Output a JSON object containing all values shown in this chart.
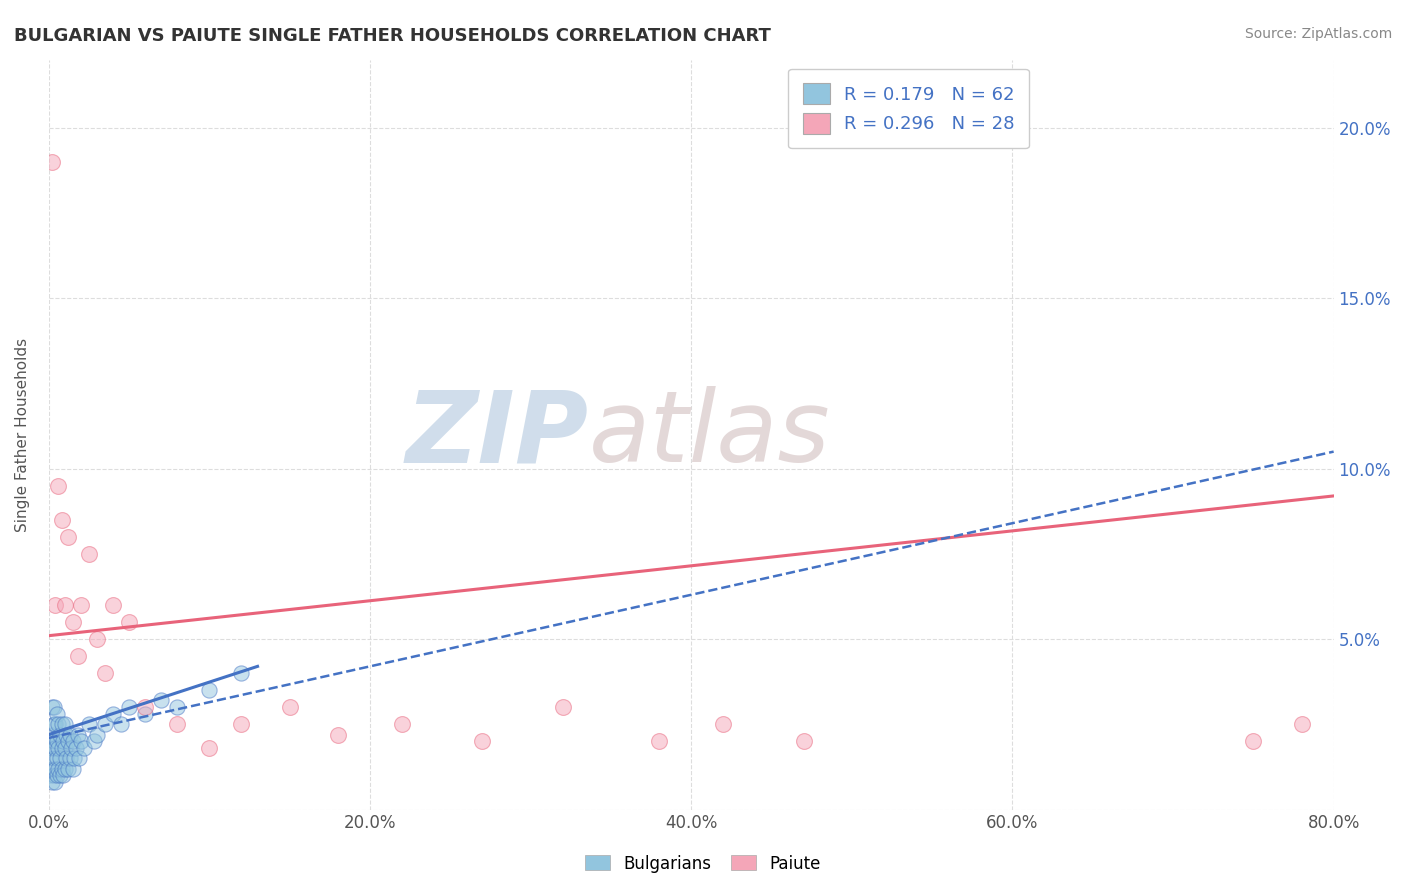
{
  "title": "BULGARIAN VS PAIUTE SINGLE FATHER HOUSEHOLDS CORRELATION CHART",
  "source": "Source: ZipAtlas.com",
  "ylabel": "Single Father Households",
  "xlim": [
    0.0,
    0.8
  ],
  "ylim": [
    0.0,
    0.22
  ],
  "xticks": [
    0.0,
    0.2,
    0.4,
    0.6,
    0.8
  ],
  "xticklabels": [
    "0.0%",
    "20.0%",
    "40.0%",
    "60.0%",
    "80.0%"
  ],
  "yticks": [
    0.0,
    0.05,
    0.1,
    0.15,
    0.2
  ],
  "yticklabels": [
    "",
    "5.0%",
    "10.0%",
    "15.0%",
    "20.0%"
  ],
  "bulgarian_color": "#92C5DE",
  "paiute_color": "#F4A6B8",
  "bulgarian_line_color": "#4472C4",
  "paiute_line_color": "#E8637A",
  "bulgarian_line_dashed": true,
  "r_bulgarian": 0.179,
  "n_bulgarian": 62,
  "r_paiute": 0.296,
  "n_paiute": 28,
  "watermark_zip": "ZIP",
  "watermark_atlas": "atlas",
  "background_color": "#FFFFFF",
  "grid_color": "#DDDDDD",
  "bulgarian_x": [
    0.001,
    0.001,
    0.001,
    0.002,
    0.002,
    0.002,
    0.002,
    0.002,
    0.003,
    0.003,
    0.003,
    0.003,
    0.003,
    0.004,
    0.004,
    0.004,
    0.004,
    0.005,
    0.005,
    0.005,
    0.005,
    0.006,
    0.006,
    0.006,
    0.007,
    0.007,
    0.007,
    0.008,
    0.008,
    0.008,
    0.009,
    0.009,
    0.01,
    0.01,
    0.01,
    0.011,
    0.011,
    0.012,
    0.012,
    0.013,
    0.013,
    0.014,
    0.015,
    0.015,
    0.016,
    0.017,
    0.018,
    0.019,
    0.02,
    0.022,
    0.025,
    0.028,
    0.03,
    0.035,
    0.04,
    0.045,
    0.05,
    0.06,
    0.07,
    0.08,
    0.1,
    0.12
  ],
  "bulgarian_y": [
    0.01,
    0.015,
    0.02,
    0.008,
    0.012,
    0.018,
    0.022,
    0.03,
    0.01,
    0.015,
    0.02,
    0.025,
    0.03,
    0.008,
    0.012,
    0.018,
    0.025,
    0.01,
    0.015,
    0.02,
    0.028,
    0.012,
    0.018,
    0.025,
    0.01,
    0.015,
    0.022,
    0.012,
    0.018,
    0.025,
    0.01,
    0.02,
    0.012,
    0.018,
    0.025,
    0.015,
    0.022,
    0.012,
    0.02,
    0.015,
    0.022,
    0.018,
    0.012,
    0.02,
    0.015,
    0.018,
    0.022,
    0.015,
    0.02,
    0.018,
    0.025,
    0.02,
    0.022,
    0.025,
    0.028,
    0.025,
    0.03,
    0.028,
    0.032,
    0.03,
    0.035,
    0.04
  ],
  "paiute_x": [
    0.002,
    0.004,
    0.006,
    0.008,
    0.01,
    0.012,
    0.015,
    0.018,
    0.02,
    0.025,
    0.03,
    0.035,
    0.04,
    0.05,
    0.06,
    0.08,
    0.1,
    0.12,
    0.15,
    0.18,
    0.22,
    0.27,
    0.32,
    0.38,
    0.42,
    0.47,
    0.75,
    0.78
  ],
  "paiute_y": [
    0.19,
    0.06,
    0.095,
    0.085,
    0.06,
    0.08,
    0.055,
    0.045,
    0.06,
    0.075,
    0.05,
    0.04,
    0.06,
    0.055,
    0.03,
    0.025,
    0.018,
    0.025,
    0.03,
    0.022,
    0.025,
    0.02,
    0.03,
    0.02,
    0.025,
    0.02,
    0.02,
    0.025
  ],
  "paiute_line_x0": 0.0,
  "paiute_line_y0": 0.051,
  "paiute_line_x1": 0.8,
  "paiute_line_y1": 0.092,
  "bulgarian_line_x0": 0.0,
  "bulgarian_line_y0": 0.021,
  "bulgarian_line_x1": 0.8,
  "bulgarian_line_y1": 0.105
}
